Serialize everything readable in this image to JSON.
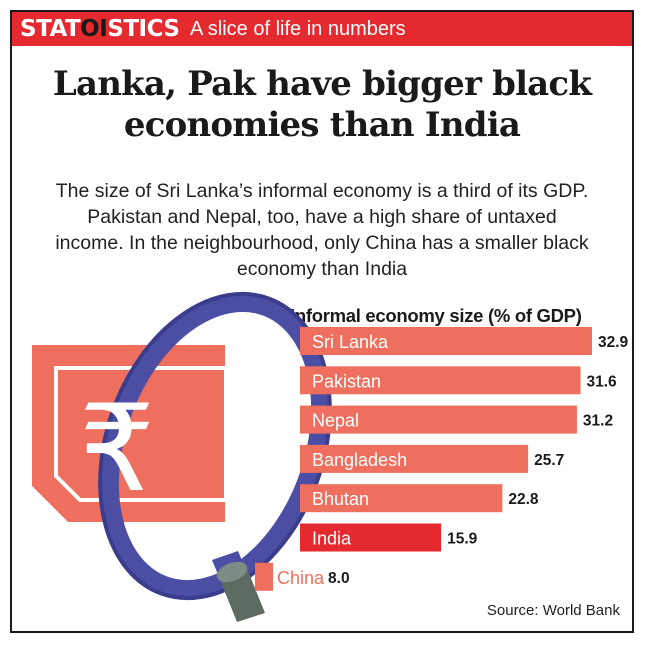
{
  "banner": {
    "brand_pre": "STAT",
    "brand_toi": "OI",
    "brand_post": "STICS",
    "tagline": "A slice of life in numbers"
  },
  "headline_line1": "Lanka, Pak have bigger black",
  "headline_line2": "economies than India",
  "subhead": "The size of Sri Lanka’s informal economy is a third of its GDP. Pakistan and Nepal, too, have a high share of untaxed income. In the neighbourhood, only China has a smaller black economy than India",
  "source": "Source: World Bank",
  "colors": {
    "banner": "#e42a2f",
    "bar": "#ef6f5e",
    "highlight_bar": "#e42a2f",
    "china_label": "#ef6f5e",
    "note": "#f08a74",
    "magnifier": "#4b4ea3"
  },
  "illustration": {
    "symbol": "₹"
  },
  "chart_data": {
    "type": "bar",
    "orientation": "horizontal",
    "title": "Informal economy size (% of GDP)",
    "categories": [
      "Sri Lanka",
      "Pakistan",
      "Nepal",
      "Bangladesh",
      "Bhutan",
      "India",
      "China"
    ],
    "values": [
      32.9,
      31.6,
      31.2,
      25.7,
      22.8,
      15.9,
      8.0
    ],
    "value_labels": [
      "32.9",
      "31.6",
      "31.2",
      "25.7",
      "22.8",
      "15.9",
      "8.0"
    ],
    "highlight": "India",
    "xlim": [
      0,
      32.9
    ],
    "grid": false,
    "legend": "none"
  }
}
